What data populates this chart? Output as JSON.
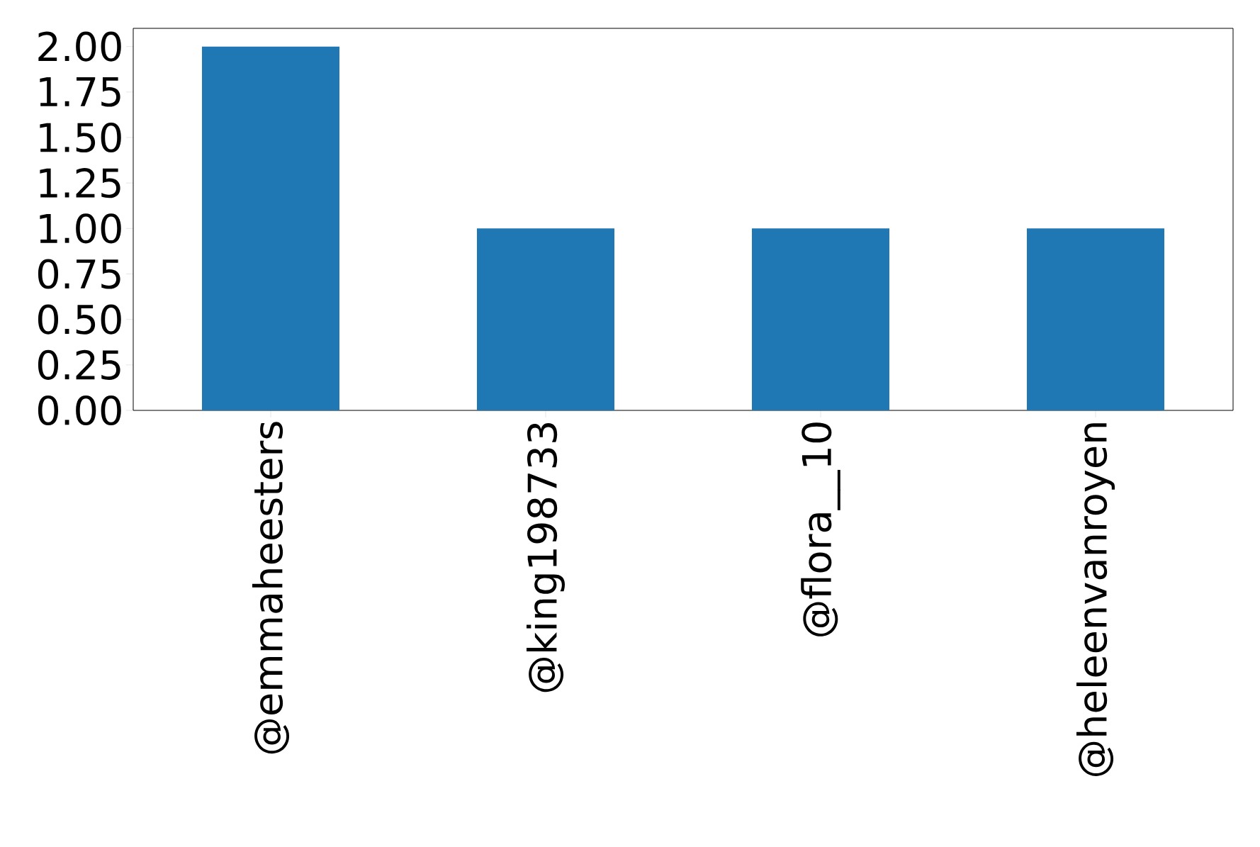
{
  "chart_data": {
    "type": "bar",
    "categories": [
      "@emmaheesters",
      "@king198733",
      "@flora__10",
      "@heleenvanroyen"
    ],
    "values": [
      2,
      1,
      1,
      1
    ],
    "color": "#1f77b4",
    "ylim": [
      0,
      2.1
    ],
    "yticks": [
      {
        "value": 0,
        "label": "0.00"
      },
      {
        "value": 0.25,
        "label": "0.25"
      },
      {
        "value": 0.5,
        "label": "0.50"
      },
      {
        "value": 0.75,
        "label": "0.75"
      },
      {
        "value": 1,
        "label": "1.00"
      },
      {
        "value": 1.25,
        "label": "1.25"
      },
      {
        "value": 1.5,
        "label": "1.50"
      },
      {
        "value": 1.75,
        "label": "1.75"
      },
      {
        "value": 2,
        "label": "2.00"
      }
    ]
  }
}
